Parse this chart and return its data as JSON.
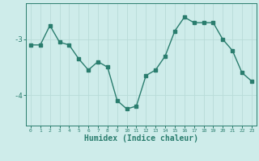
{
  "x": [
    0,
    1,
    2,
    3,
    4,
    5,
    6,
    7,
    8,
    9,
    10,
    11,
    12,
    13,
    14,
    15,
    16,
    17,
    18,
    19,
    20,
    21,
    22,
    23
  ],
  "y": [
    -3.1,
    -3.1,
    -2.75,
    -3.05,
    -3.1,
    -3.35,
    -3.55,
    -3.4,
    -3.5,
    -4.1,
    -4.25,
    -4.2,
    -3.65,
    -3.55,
    -3.3,
    -2.85,
    -2.6,
    -2.7,
    -2.7,
    -2.7,
    -3.0,
    -3.2,
    -3.6,
    -3.75
  ],
  "line_color": "#2a7d6e",
  "marker": "s",
  "markersize": 2.5,
  "linewidth": 1.0,
  "xlabel": "Humidex (Indice chaleur)",
  "xlabel_fontsize": 7.0,
  "xlabel_color": "#2a7d6e",
  "ylabel_ticks": [
    -4,
    -3
  ],
  "ytick_labels": [
    "-4",
    "-3"
  ],
  "background_color": "#ceecea",
  "grid_color": "#b8dbd8",
  "tick_color": "#2a7d6e",
  "xlim": [
    -0.5,
    23.5
  ],
  "ylim": [
    -4.55,
    -2.35
  ]
}
